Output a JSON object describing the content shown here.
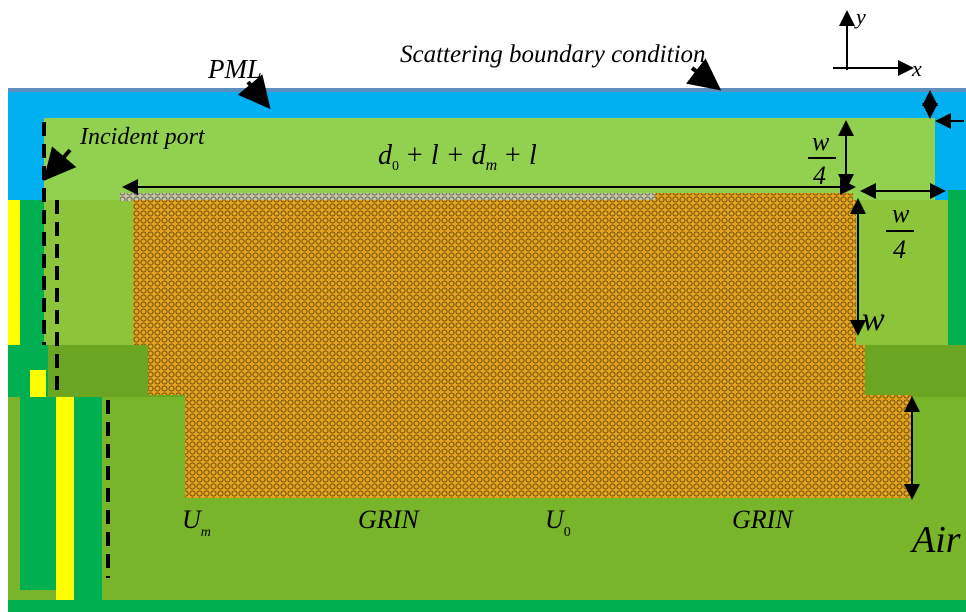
{
  "labels": {
    "boundary": "Scattering boundary condition",
    "pml": "PML",
    "port": "Incident port",
    "y_axis": "y",
    "x_axis": "x",
    "air": "Air"
  },
  "formula": [
    "d",
    "0",
    "+ l + d",
    "m",
    "+ l"
  ],
  "quarter_top": {
    "numerator": "w",
    "denominator": "4"
  },
  "quarter_right": {
    "numerator": "w",
    "denominator": "4"
  },
  "width": "w",
  "regions": [
    {
      "main": "U",
      "sub": "m"
    },
    {
      "main": "GRIN"
    },
    {
      "main": "U",
      "sub": "0"
    },
    {
      "main": "GRIN"
    }
  ]
}
